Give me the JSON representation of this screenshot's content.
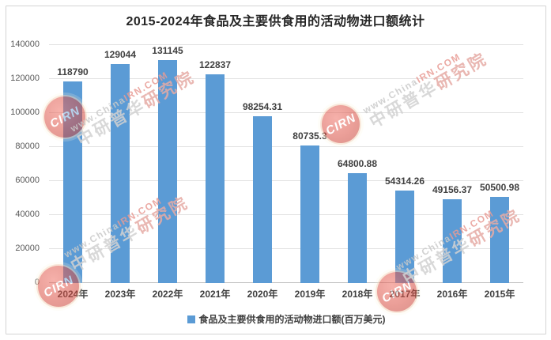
{
  "page": {
    "title": "2015-2024年食品及主要供食用的活动物进口额统计"
  },
  "chart_data": {
    "type": "bar",
    "title": "2015-2024年食品及主要供食用的活动物进口额统计",
    "categories": [
      "2024年",
      "2023年",
      "2022年",
      "2021年",
      "2020年",
      "2019年",
      "2018年",
      "2017年",
      "2016年",
      "2015年"
    ],
    "values": [
      118790,
      129044,
      131145,
      122837,
      98254.31,
      80735.3,
      64800.88,
      54314.26,
      49156.37,
      50500.98
    ],
    "value_labels": [
      "118790",
      "129044",
      "131145",
      "122837",
      "98254.31",
      "80735.3",
      "64800.88",
      "54314.26",
      "49156.37",
      "50500.98"
    ],
    "xlabel": "",
    "ylabel": "",
    "ylim": [
      0,
      140000
    ],
    "yticks": [
      140000,
      120000,
      100000,
      80000,
      60000,
      40000,
      20000,
      0
    ],
    "grid": true,
    "legend": {
      "label": "食品及主要供食用的活动物进口额(百万美元)",
      "position": "bottom"
    },
    "bar_color": "#5B9BD5"
  },
  "watermark": {
    "logo_text": "CIRN",
    "url_gray_part": "www.China",
    "url_red_part": "IRN.COM",
    "brand_gray_part": "中研普华",
    "brand_red_part": "研究院"
  },
  "colors": {
    "bar": "#5B9BD5",
    "gridline": "#E2E2E2",
    "axis_baseline": "#BFBFBF",
    "title_text": "#262626",
    "value_text": "#404040",
    "axis_text": "#595959",
    "frame_border": "#D4D4D4",
    "watermark_red": "#D94F43",
    "watermark_gray": "#C9C9C9"
  }
}
